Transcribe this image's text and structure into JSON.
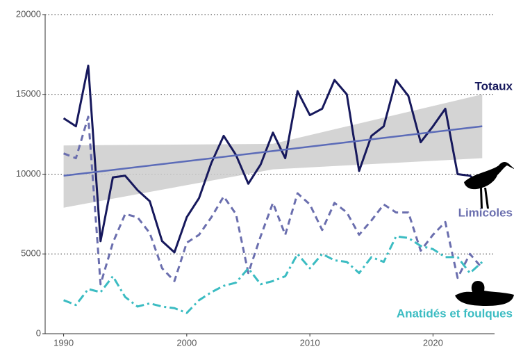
{
  "chart_data": {
    "type": "line",
    "x": [
      1990,
      1991,
      1992,
      1993,
      1994,
      1995,
      1996,
      1997,
      1998,
      1999,
      2000,
      2001,
      2002,
      2003,
      2004,
      2005,
      2006,
      2007,
      2008,
      2009,
      2010,
      2011,
      2012,
      2013,
      2014,
      2015,
      2016,
      2017,
      2018,
      2019,
      2020,
      2021,
      2022,
      2023,
      2024
    ],
    "series": [
      {
        "name": "Totaux",
        "color": "#16185c",
        "dash": "solid",
        "values": [
          13500,
          13000,
          16800,
          5800,
          9800,
          9900,
          9000,
          8300,
          5800,
          5100,
          7300,
          8500,
          10700,
          12400,
          11200,
          9400,
          10600,
          12600,
          11000,
          15200,
          13700,
          14100,
          15900,
          15000,
          10200,
          12400,
          13000,
          15900,
          14900,
          12000,
          13000,
          14100,
          10000,
          9900,
          9300
        ]
      },
      {
        "name": "Limicoles",
        "color": "#6a6eae",
        "dash": "dashed",
        "values": [
          11300,
          11000,
          13600,
          3100,
          5700,
          7500,
          7300,
          6300,
          4100,
          3300,
          5700,
          6200,
          7300,
          8600,
          7500,
          3800,
          6100,
          8200,
          6200,
          8800,
          8100,
          6500,
          8200,
          7600,
          6200,
          7100,
          8100,
          7600,
          7600,
          5200,
          6200,
          7000,
          3500,
          5000,
          4100
        ]
      },
      {
        "name": "Anatidés et foulques",
        "color": "#3bbcc2",
        "dash": "dashdot",
        "values": [
          2100,
          1800,
          2800,
          2600,
          3600,
          2300,
          1700,
          1900,
          1700,
          1600,
          1300,
          2100,
          2600,
          3000,
          3200,
          4100,
          3100,
          3300,
          3600,
          5000,
          4100,
          5000,
          4600,
          4500,
          3800,
          4800,
          4500,
          6100,
          6000,
          5500,
          5300,
          4800,
          4800,
          3800,
          4500
        ]
      }
    ],
    "trend": {
      "color": "#5b6bb8",
      "x": [
        1990,
        2024
      ],
      "values": [
        9900,
        13000
      ]
    },
    "band": {
      "color": "#cccccc",
      "x": [
        1990,
        2007,
        2024
      ],
      "lower": [
        7900,
        10300,
        11000
      ],
      "upper": [
        11800,
        11900,
        15000
      ]
    },
    "xlim": [
      1988.5,
      2025
    ],
    "xticks": [
      1990,
      2000,
      2010,
      2020
    ],
    "ylim": [
      0,
      20000
    ],
    "yticks": [
      0,
      5000,
      10000,
      15000,
      20000
    ],
    "grid": true
  }
}
